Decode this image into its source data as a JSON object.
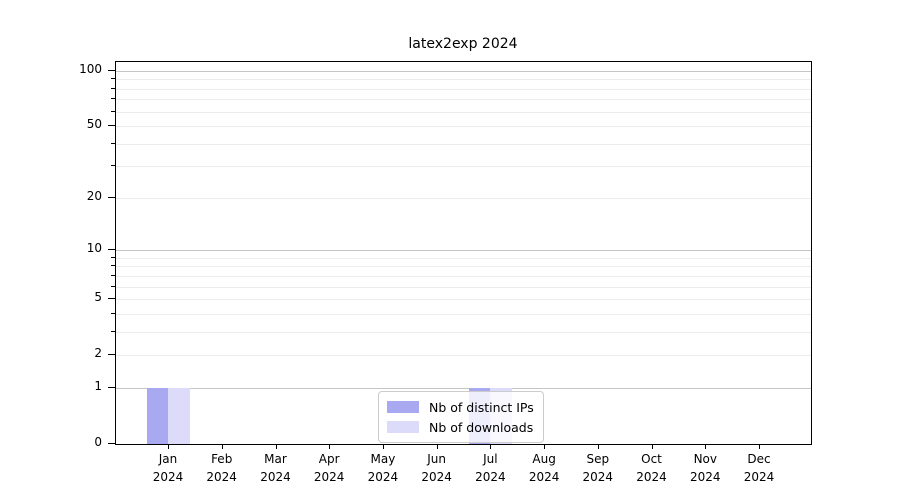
{
  "title": "latex2exp 2024",
  "chart_data": {
    "type": "bar",
    "title": "latex2exp 2024",
    "categories": [
      "Jan 2024",
      "Feb 2024",
      "Mar 2024",
      "Apr 2024",
      "May 2024",
      "Jun 2024",
      "Jul 2024",
      "Aug 2024",
      "Sep 2024",
      "Oct 2024",
      "Nov 2024",
      "Dec 2024"
    ],
    "series": [
      {
        "name": "Nb of distinct IPs",
        "color": "#a9a9f2",
        "values": [
          1,
          0,
          0,
          0,
          0,
          0,
          1,
          0,
          0,
          0,
          0,
          0
        ]
      },
      {
        "name": "Nb of downloads",
        "color": "#dcdcfa",
        "values": [
          1,
          0,
          0,
          0,
          0,
          0,
          1,
          0,
          0,
          0,
          0,
          0
        ]
      }
    ],
    "xlabel": "",
    "ylabel": "",
    "yscale": "log1p",
    "yticks": [
      0,
      1,
      2,
      5,
      10,
      20,
      50,
      100
    ],
    "ylim": [
      0,
      111
    ],
    "grid": true,
    "grid_major_color": "#c6c6c6",
    "grid_minor_color": "#ececec",
    "legend_position": "lower center"
  }
}
